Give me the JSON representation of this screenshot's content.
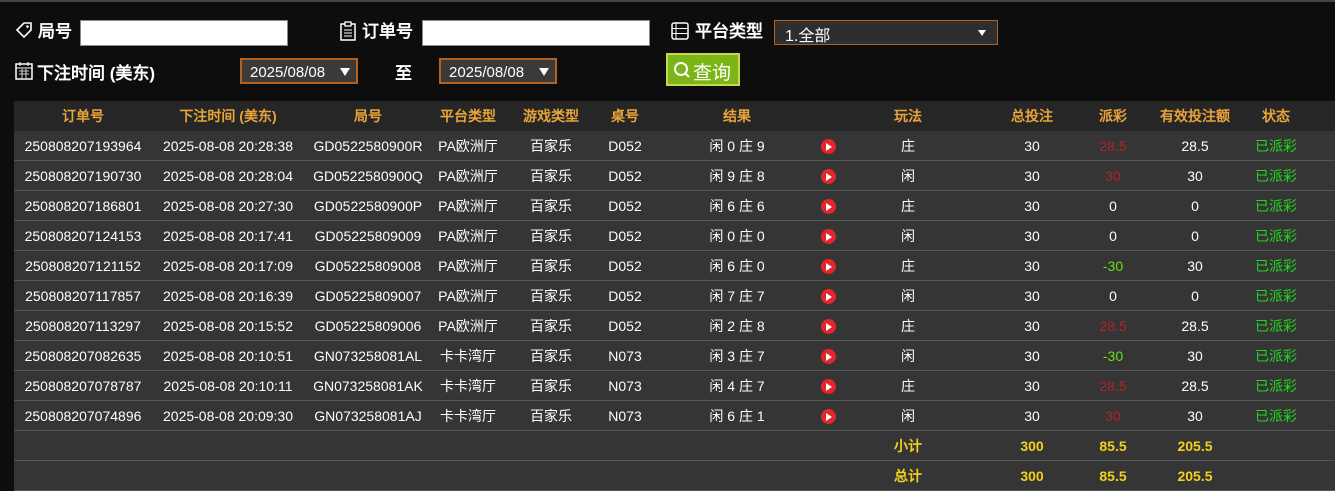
{
  "filters": {
    "round_label": "局号",
    "order_label": "订单号",
    "platform_label": "平台类型",
    "platform_value": "1.全部",
    "time_label": "下注时间 (美东)",
    "date_from": "2025/08/08",
    "to_label": "至",
    "date_to": "2025/08/08",
    "search_button": "查询"
  },
  "table": {
    "columns": [
      "订单号",
      "下注时间 (美东)",
      "局号",
      "平台类型",
      "游戏类型",
      "桌号",
      "结果",
      "玩法",
      "总投注",
      "派彩",
      "有效投注额",
      "状态"
    ],
    "rows": [
      [
        "250808207193964",
        "2025-08-08 20:28:38",
        "GD0522580900R",
        "PA欧洲厅",
        "百家乐",
        "D052",
        "闲 0 庄 9",
        "庄",
        30,
        28.5,
        28.5,
        "已派彩"
      ],
      [
        "250808207190730",
        "2025-08-08 20:28:04",
        "GD0522580900Q",
        "PA欧洲厅",
        "百家乐",
        "D052",
        "闲 9 庄 8",
        "闲",
        30,
        30,
        30,
        "已派彩"
      ],
      [
        "250808207186801",
        "2025-08-08 20:27:30",
        "GD0522580900P",
        "PA欧洲厅",
        "百家乐",
        "D052",
        "闲 6 庄 6",
        "庄",
        30,
        0,
        0,
        "已派彩"
      ],
      [
        "250808207124153",
        "2025-08-08 20:17:41",
        "GD05225809009",
        "PA欧洲厅",
        "百家乐",
        "D052",
        "闲 0 庄 0",
        "闲",
        30,
        0,
        0,
        "已派彩"
      ],
      [
        "250808207121152",
        "2025-08-08 20:17:09",
        "GD05225809008",
        "PA欧洲厅",
        "百家乐",
        "D052",
        "闲 6 庄 0",
        "庄",
        30,
        -30,
        30,
        "已派彩"
      ],
      [
        "250808207117857",
        "2025-08-08 20:16:39",
        "GD05225809007",
        "PA欧洲厅",
        "百家乐",
        "D052",
        "闲 7 庄 7",
        "闲",
        30,
        0,
        0,
        "已派彩"
      ],
      [
        "250808207113297",
        "2025-08-08 20:15:52",
        "GD05225809006",
        "PA欧洲厅",
        "百家乐",
        "D052",
        "闲 2 庄 8",
        "庄",
        30,
        28.5,
        28.5,
        "已派彩"
      ],
      [
        "250808207082635",
        "2025-08-08 20:10:51",
        "GN073258081AL",
        "卡卡湾厅",
        "百家乐",
        "N073",
        "闲 3 庄 7",
        "闲",
        30,
        -30,
        30,
        "已派彩"
      ],
      [
        "250808207078787",
        "2025-08-08 20:10:11",
        "GN073258081AK",
        "卡卡湾厅",
        "百家乐",
        "N073",
        "闲 4 庄 7",
        "庄",
        30,
        28.5,
        28.5,
        "已派彩"
      ],
      [
        "250808207074896",
        "2025-08-08 20:09:30",
        "GN073258081AJ",
        "卡卡湾厅",
        "百家乐",
        "N073",
        "闲 6 庄 1",
        "闲",
        30,
        30,
        30,
        "已派彩"
      ]
    ],
    "summaries": [
      {
        "label": "小计",
        "total": 300,
        "payout": 85.5,
        "valid": 205.5
      },
      {
        "label": "总计",
        "total": 300,
        "payout": 85.5,
        "valid": 205.5
      }
    ]
  }
}
